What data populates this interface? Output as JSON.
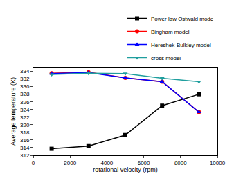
{
  "chart_data": {
    "type": "line",
    "x_label": "rotational velocity (rpm)",
    "y_label": "Average temperature (K)",
    "x": [
      1000,
      3000,
      5000,
      7000,
      9000
    ],
    "series": [
      {
        "name": "Power law Ostwald mode",
        "color": "#000000",
        "marker": "square",
        "values": [
          313.7,
          314.4,
          317.3,
          325.0,
          328.0
        ]
      },
      {
        "name": "Bingham model",
        "color": "#ff0000",
        "marker": "circle",
        "values": [
          333.5,
          333.8,
          332.3,
          331.3,
          323.3
        ]
      },
      {
        "name": "Hereshek-Bulkley model",
        "color": "#0000ff",
        "marker": "triangle-up",
        "values": [
          333.4,
          333.7,
          332.3,
          331.3,
          323.3
        ]
      },
      {
        "name": "cross model",
        "color": "#1f9e9e",
        "marker": "triangle-down",
        "values": [
          333.2,
          333.5,
          333.4,
          332.2,
          331.3
        ]
      }
    ],
    "xlim": [
      0,
      10000
    ],
    "xticks": [
      0,
      2000,
      4000,
      6000,
      8000,
      10000
    ],
    "ylim": [
      312,
      335
    ],
    "yticks": [
      312,
      314,
      316,
      318,
      320,
      322,
      324,
      326,
      328,
      330,
      332,
      334
    ],
    "grid": false,
    "legend": "upper right"
  }
}
